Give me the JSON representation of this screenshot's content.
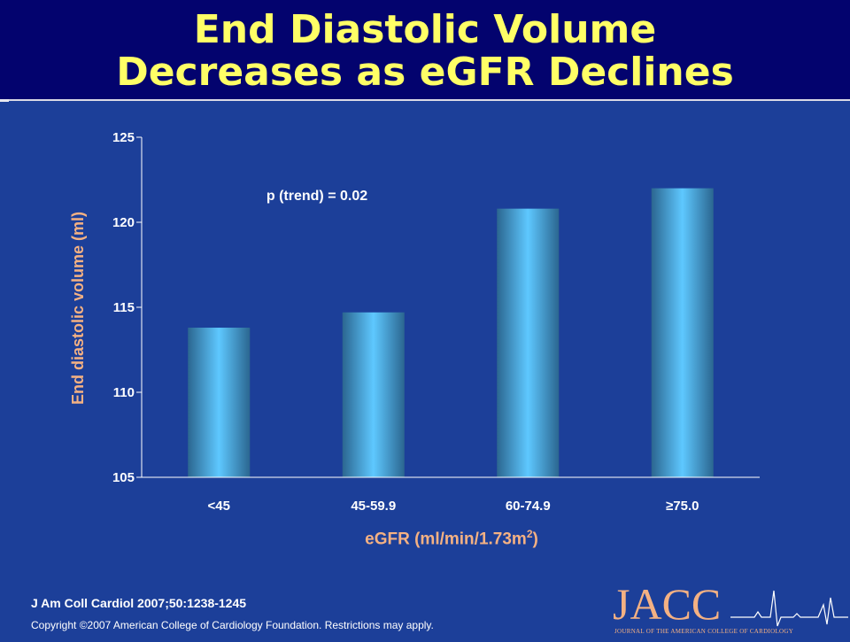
{
  "title": {
    "line1": "End Diastolic Volume",
    "line2": "Decreases as eGFR Declines"
  },
  "colors": {
    "background": "#1c3f99",
    "title_bar": "#03036e",
    "title_text": "#ffff66",
    "axis_label": "#f4b183",
    "bar_light": "#5ec8ff",
    "bar_dark": "#2b6690"
  },
  "chart_data": {
    "type": "bar",
    "categories": [
      "<45",
      "45-59.9",
      "60-74.9",
      "≥75.0"
    ],
    "values": [
      113.8,
      114.7,
      120.8,
      122.0
    ],
    "ylim": [
      105,
      125
    ],
    "yticks": [
      "105",
      "110",
      "115",
      "120",
      "125"
    ],
    "ylabel": "End diastolic volume (ml)",
    "xlabel_main": "eGFR (ml/min/1.73m",
    "xlabel_sup": "2",
    "xlabel_end": ")",
    "annotation": "p (trend) = 0.02",
    "grid": false
  },
  "footer": {
    "citation": "J Am Coll Cardiol 2007;50:1238-1245",
    "copyright": "Copyright ©2007 American College of Cardiology Foundation. Restrictions may apply."
  },
  "logo": {
    "name": "JACC",
    "subtitle": "Journal of the American College of Cardiology",
    "icon": "ecg-trace-icon"
  }
}
